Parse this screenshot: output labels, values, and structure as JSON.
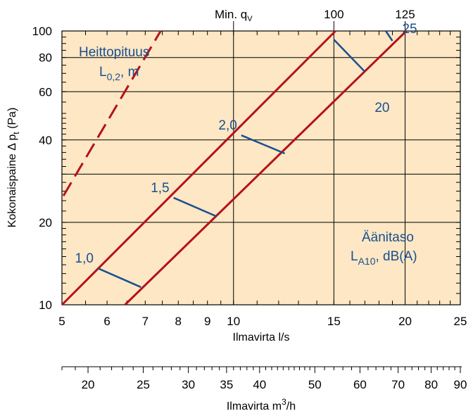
{
  "chart_data": {
    "type": "line",
    "background_color": "#fde7c4",
    "line_color": "#b5121b",
    "label_color": "#1a4f8f",
    "x_axis": {
      "label": "Ilmavirta l/s",
      "scale": "log",
      "range": [
        5,
        25
      ],
      "ticks": [
        5,
        6,
        7,
        8,
        9,
        10,
        15,
        20,
        25
      ],
      "tick_labels": [
        "5",
        "6",
        "7",
        "8",
        "9",
        "10",
        "15",
        "20",
        "25"
      ]
    },
    "secondary_x_axis": {
      "label": "Ilmavirta m³/h",
      "label_main": "Ilmavirta m",
      "label_sup": "3",
      "label_end": "/h",
      "ticks": [
        20,
        25,
        30,
        35,
        40,
        50,
        60,
        70,
        80,
        90
      ],
      "tick_labels": [
        "20",
        "25",
        "30",
        "35",
        "40",
        "50",
        "60",
        "70",
        "80",
        "90"
      ]
    },
    "y_axis": {
      "label": "Kokonaispaine Δ pt (Pa)",
      "label_main": "Kokonaispaine Δ p",
      "label_sub": "t",
      "label_end": " (Pa)",
      "scale": "log",
      "range": [
        10,
        100
      ],
      "ticks": [
        10,
        20,
        40,
        60,
        80,
        100
      ],
      "tick_labels": [
        "10",
        "20",
        "40",
        "60",
        "80",
        "100"
      ]
    },
    "top_labels": [
      {
        "x": 10,
        "text_main": "Min. q",
        "text_sub": "V"
      },
      {
        "x": 15,
        "text_main": "100",
        "text_sub": ""
      },
      {
        "x": 20,
        "text_main": "125",
        "text_sub": ""
      }
    ],
    "series": [
      {
        "style": "dashed",
        "points": [
          [
            5.03,
            25
          ],
          [
            7.45,
            100
          ]
        ]
      },
      {
        "style": "solid",
        "points": [
          [
            5.0,
            10
          ],
          [
            15.1,
            100
          ]
        ]
      },
      {
        "style": "solid",
        "points": [
          [
            6.45,
            10
          ],
          [
            20.1,
            100
          ]
        ]
      }
    ],
    "throw_length": {
      "title": "Heittopituus",
      "unit_main": "L",
      "unit_sub": "0,2",
      "unit_end": ", m",
      "marks": [
        {
          "label": "1,0",
          "start": [
            5.78,
            13.6
          ],
          "end": [
            6.88,
            11.6
          ]
        },
        {
          "label": "1,5",
          "start": [
            7.85,
            24.6
          ],
          "end": [
            9.35,
            21.0
          ]
        },
        {
          "label": "2,0",
          "start": [
            10.32,
            41.6
          ],
          "end": [
            12.3,
            35.7
          ]
        }
      ]
    },
    "sound_level": {
      "title": "Äänitaso",
      "unit_main": "L",
      "unit_sub": "A10",
      "unit_end": ", dB(A)",
      "marks": [
        {
          "label": "20",
          "start": [
            15.0,
            93.0
          ],
          "end": [
            17.0,
            71.0
          ]
        },
        {
          "label": "25",
          "start": [
            18.5,
            100
          ],
          "end": [
            19.0,
            92.0
          ]
        }
      ]
    }
  }
}
